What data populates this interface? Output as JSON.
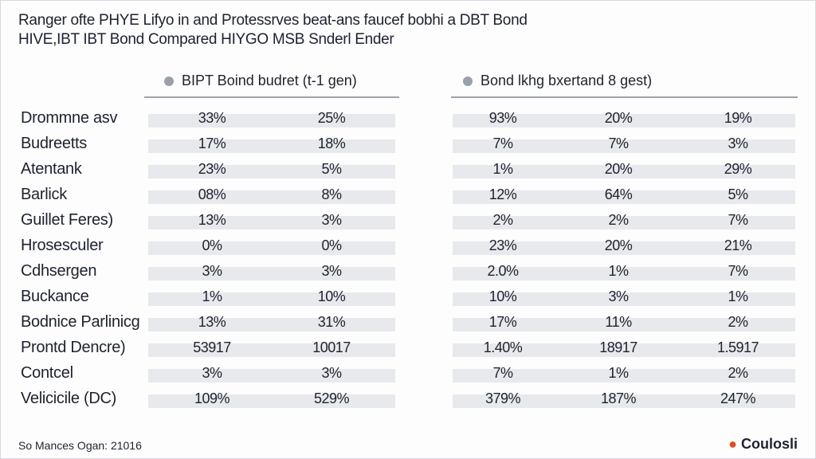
{
  "header": {
    "title": "Ranger ofte PHYE Lifyo in and Protessrves beat-ans faucef bobhi a DBT Bond",
    "subtitle": "HIVE,IBT IBT Bond Compared HIYGO MSB Snderl Ender"
  },
  "table": {
    "groups": [
      "BIPT Boind budret (t-1 gen)",
      "Bond lkhg bxertand 8 gest)"
    ],
    "rows": [
      [
        "Drommne asv",
        "33%",
        "25%",
        "93%",
        "20%",
        "19%"
      ],
      [
        "Budreetts",
        "17%",
        "18%",
        "7%",
        "7%",
        "3%"
      ],
      [
        "Atentank",
        "23%",
        "5%",
        "1%",
        "20%",
        "29%"
      ],
      [
        "Barlick",
        "08%",
        "8%",
        "12%",
        "64%",
        "5%"
      ],
      [
        "Guillet Feres)",
        "13%",
        "3%",
        "2%",
        "2%",
        "7%"
      ],
      [
        "Hrosesculer",
        "0%",
        "0%",
        "23%",
        "20%",
        "21%"
      ],
      [
        "Cdhsergen",
        "3%",
        "3%",
        "2.0%",
        "1%",
        "7%"
      ],
      [
        "Buckance",
        "1%",
        "10%",
        "10%",
        "3%",
        "1%"
      ],
      [
        "Bodnice Parlinicg",
        "13%",
        "31%",
        "17%",
        "11%",
        "2%"
      ],
      [
        "Prontd Dencre)",
        "53917",
        "10017",
        "1.40%",
        "18917",
        "1.5917"
      ],
      [
        "Contcel",
        "3%",
        "3%",
        "7%",
        "1%",
        "2%"
      ],
      [
        "Velicicile (DC)",
        "109%",
        "529%",
        "379%",
        "187%",
        "247%"
      ]
    ]
  },
  "footer": {
    "source": "So Mances Ogan: 21016",
    "logo": "Coulosli"
  }
}
